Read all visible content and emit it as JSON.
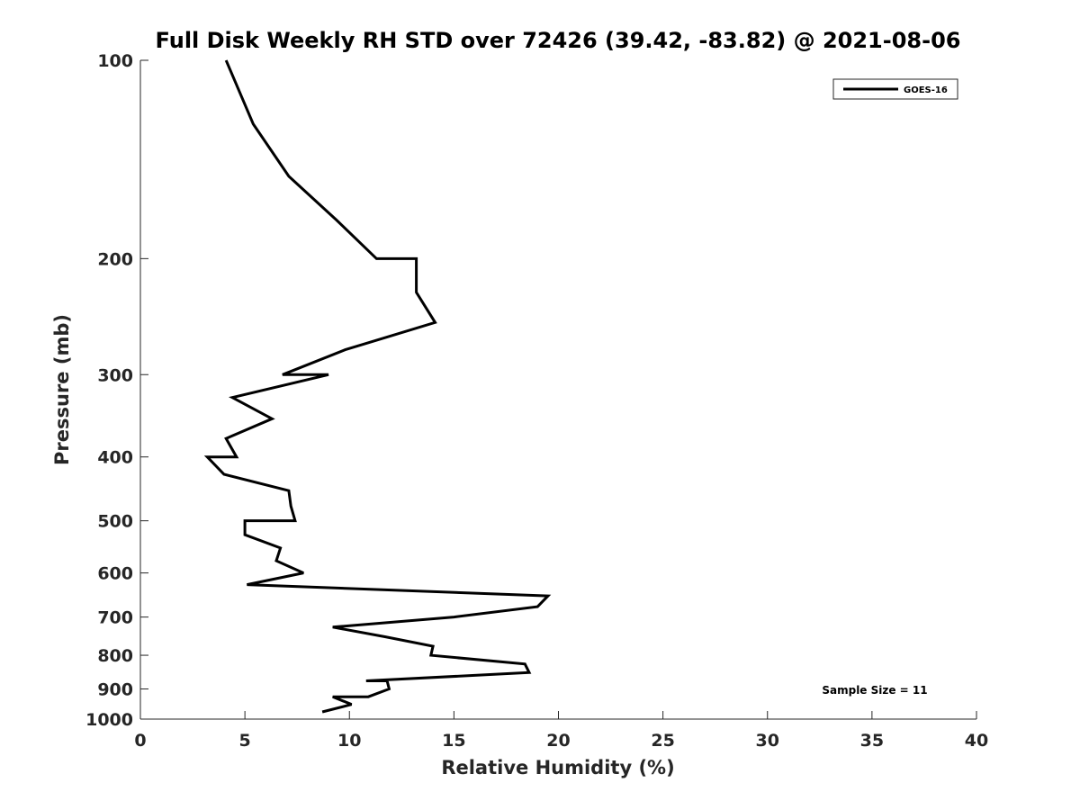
{
  "chart_data": {
    "type": "line",
    "title": "Full Disk Weekly RH STD over 72426 (39.42, -83.82) @ 2021-08-06",
    "xlabel": "Relative Humidity (%)",
    "ylabel": "Pressure (mb)",
    "xlim": [
      0,
      40
    ],
    "ylim": [
      100,
      1000
    ],
    "y_scale": "log",
    "y_reversed": true,
    "x_ticks": [
      0,
      5,
      10,
      15,
      20,
      25,
      30,
      35,
      40
    ],
    "y_ticks": [
      100,
      200,
      300,
      400,
      500,
      600,
      700,
      800,
      900,
      1000
    ],
    "grid": false,
    "legend_position": "top-right",
    "annotation": "Sample Size = 11",
    "series": [
      {
        "name": "GOES-16",
        "color": "#000000",
        "points": [
          [
            4.1,
            100
          ],
          [
            5.4,
            125
          ],
          [
            7.1,
            150
          ],
          [
            9.4,
            175
          ],
          [
            11.3,
            200
          ],
          [
            13.2,
            200
          ],
          [
            13.2,
            225
          ],
          [
            14.1,
            250
          ],
          [
            9.8,
            275
          ],
          [
            6.8,
            300
          ],
          [
            9.0,
            300
          ],
          [
            4.4,
            325
          ],
          [
            6.3,
            350
          ],
          [
            4.1,
            375
          ],
          [
            4.6,
            400
          ],
          [
            3.2,
            400
          ],
          [
            4.0,
            425
          ],
          [
            7.1,
            450
          ],
          [
            7.2,
            475
          ],
          [
            7.4,
            500
          ],
          [
            5.0,
            500
          ],
          [
            5.0,
            525
          ],
          [
            6.7,
            550
          ],
          [
            6.5,
            575
          ],
          [
            7.8,
            600
          ],
          [
            5.1,
            625
          ],
          [
            19.5,
            650
          ],
          [
            19.0,
            675
          ],
          [
            15.0,
            700
          ],
          [
            9.2,
            725
          ],
          [
            11.7,
            750
          ],
          [
            14.0,
            775
          ],
          [
            13.9,
            800
          ],
          [
            18.4,
            825
          ],
          [
            18.6,
            850
          ],
          [
            10.8,
            875
          ],
          [
            11.8,
            875
          ],
          [
            11.9,
            900
          ],
          [
            10.9,
            925
          ],
          [
            9.2,
            925
          ],
          [
            10.1,
            950
          ],
          [
            8.7,
            975
          ]
        ]
      }
    ]
  }
}
